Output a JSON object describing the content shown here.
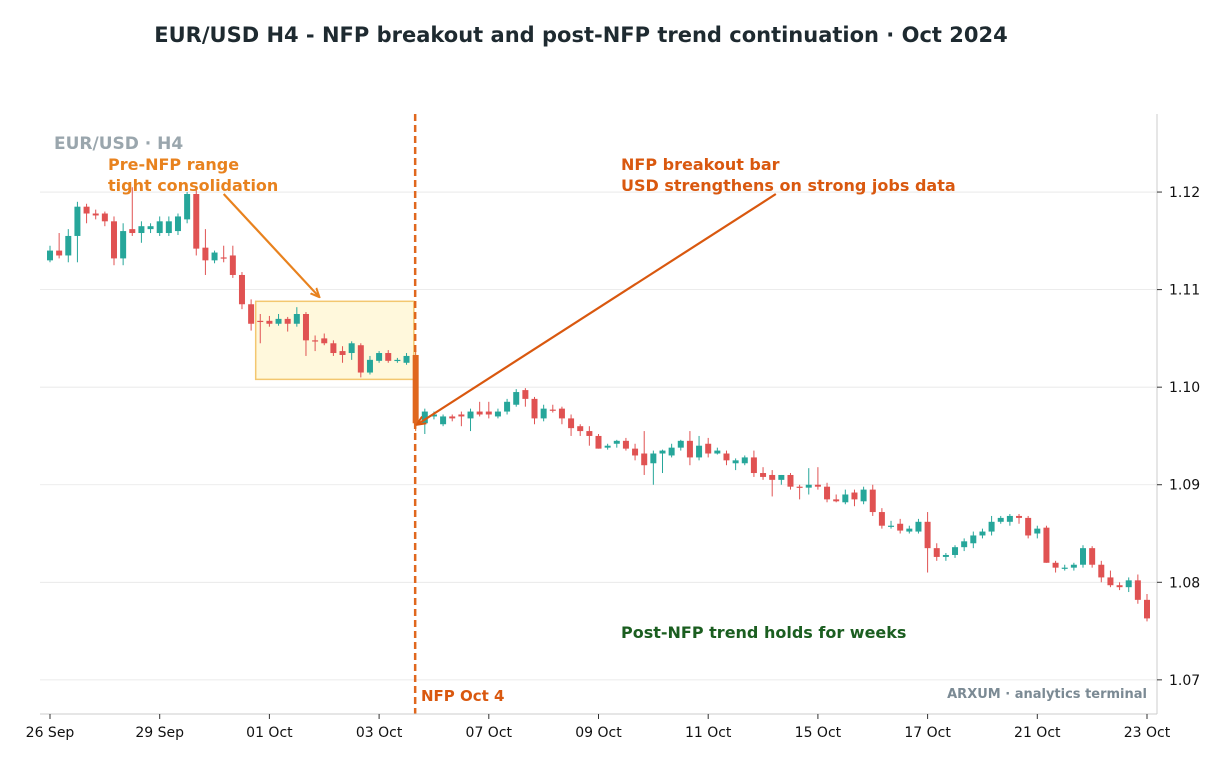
{
  "chart_data": {
    "type": "candlestick",
    "title": "EUR/USD H4 - NFP breakout and post-NFP trend continuation  ·  Oct 2024",
    "watermark": "EUR/USD · H4",
    "footer": "ARXUM · analytics terminal",
    "ylim": [
      1.0665,
      1.128
    ],
    "xlim": [
      -0.3,
      24.2
    ],
    "y_ticks": [
      1.07,
      1.08,
      1.09,
      1.1,
      1.11,
      1.12
    ],
    "y_tick_labels": [
      "1.07",
      "1.08",
      "1.09",
      "1.10",
      "1.11",
      "1.12"
    ],
    "x_ticks": [
      0,
      2.4,
      4.8,
      7.2,
      9.6,
      12,
      14.4,
      16.8,
      19.2,
      21.6,
      24
    ],
    "x_tick_labels": [
      "26 Sep",
      "29 Sep",
      "01 Oct",
      "03 Oct",
      "07 Oct",
      "09 Oct",
      "11 Oct",
      "15 Oct",
      "17 Oct",
      "21 Oct",
      "23 Oct"
    ],
    "grid": "horizontal",
    "colors": {
      "up": "#26a69a",
      "down": "#e05252",
      "nfp": "#e0671e",
      "range_fill": "#fff8dc",
      "range_edge": "#f3c770",
      "grid": "#e6e6e6"
    },
    "candles": [
      [
        1.113,
        1.1145,
        1.1128,
        1.114
      ],
      [
        1.114,
        1.1158,
        1.1132,
        1.1135
      ],
      [
        1.1135,
        1.1162,
        1.1128,
        1.1155
      ],
      [
        1.1155,
        1.119,
        1.1128,
        1.1185
      ],
      [
        1.1185,
        1.1188,
        1.1168,
        1.1178
      ],
      [
        1.1178,
        1.1182,
        1.1172,
        1.1176
      ],
      [
        1.1178,
        1.118,
        1.1165,
        1.117
      ],
      [
        1.117,
        1.1175,
        1.1125,
        1.1132
      ],
      [
        1.1132,
        1.1168,
        1.1125,
        1.116
      ],
      [
        1.1162,
        1.1205,
        1.1155,
        1.1158
      ],
      [
        1.1158,
        1.117,
        1.1148,
        1.1165
      ],
      [
        1.1162,
        1.1168,
        1.1158,
        1.1165
      ],
      [
        1.1158,
        1.1175,
        1.1155,
        1.117
      ],
      [
        1.1158,
        1.1175,
        1.1155,
        1.117
      ],
      [
        1.116,
        1.1178,
        1.1156,
        1.1175
      ],
      [
        1.1172,
        1.12,
        1.1168,
        1.1198
      ],
      [
        1.1198,
        1.1202,
        1.1135,
        1.1142
      ],
      [
        1.1143,
        1.1162,
        1.1115,
        1.113
      ],
      [
        1.113,
        1.114,
        1.1127,
        1.1138
      ],
      [
        1.1133,
        1.1145,
        1.1128,
        1.1132
      ],
      [
        1.1135,
        1.1145,
        1.1112,
        1.1115
      ],
      [
        1.1115,
        1.1118,
        1.108,
        1.1085
      ],
      [
        1.1085,
        1.109,
        1.1058,
        1.1065
      ],
      [
        1.1068,
        1.1075,
        1.1045,
        1.1067
      ],
      [
        1.1068,
        1.1073,
        1.1062,
        1.1065
      ],
      [
        1.1065,
        1.1075,
        1.1063,
        1.107
      ],
      [
        1.107,
        1.1072,
        1.1057,
        1.1065
      ],
      [
        1.1065,
        1.1082,
        1.1062,
        1.1075
      ],
      [
        1.1075,
        1.1077,
        1.1032,
        1.1048
      ],
      [
        1.1048,
        1.1053,
        1.1037,
        1.1047
      ],
      [
        1.105,
        1.1055,
        1.1043,
        1.1045
      ],
      [
        1.1045,
        1.1048,
        1.1032,
        1.1035
      ],
      [
        1.1037,
        1.1042,
        1.1025,
        1.1033
      ],
      [
        1.1035,
        1.1047,
        1.1028,
        1.1045
      ],
      [
        1.1043,
        1.1045,
        1.101,
        1.1015
      ],
      [
        1.1015,
        1.1032,
        1.1013,
        1.1028
      ],
      [
        1.1027,
        1.1037,
        1.1025,
        1.1035
      ],
      [
        1.1035,
        1.1038,
        1.1025,
        1.1027
      ],
      [
        1.1027,
        1.103,
        1.1025,
        1.1028
      ],
      [
        1.1025,
        1.1035,
        1.1023,
        1.1032
      ],
      [
        1.1033,
        1.1037,
        1.0955,
        1.0963
      ],
      [
        1.0963,
        1.0978,
        1.0952,
        1.0975
      ],
      [
        1.097,
        1.0975,
        1.0967,
        1.0972
      ],
      [
        1.0962,
        1.0972,
        1.096,
        1.097
      ],
      [
        1.097,
        1.0972,
        1.0965,
        1.0968
      ],
      [
        1.0972,
        1.0975,
        1.096,
        1.097
      ],
      [
        1.0968,
        1.0978,
        1.0955,
        1.0975
      ],
      [
        1.0975,
        1.0985,
        1.097,
        1.0972
      ],
      [
        1.0975,
        1.0985,
        1.0968,
        1.0972
      ],
      [
        1.097,
        1.0978,
        1.0968,
        1.0975
      ],
      [
        1.0975,
        1.0988,
        1.0972,
        1.0985
      ],
      [
        1.0982,
        1.0998,
        1.098,
        1.0995
      ],
      [
        1.0997,
        1.0999,
        1.098,
        1.0988
      ],
      [
        1.0988,
        1.099,
        1.0962,
        1.0968
      ],
      [
        1.0968,
        1.0982,
        1.0965,
        1.0978
      ],
      [
        1.0977,
        1.0982,
        1.0974,
        1.0976
      ],
      [
        1.0978,
        1.098,
        1.0962,
        1.0968
      ],
      [
        1.0968,
        1.0972,
        1.095,
        1.0958
      ],
      [
        1.096,
        1.0962,
        1.095,
        1.0955
      ],
      [
        1.0955,
        1.096,
        1.094,
        1.095
      ],
      [
        1.095,
        1.0952,
        1.0937,
        1.0937
      ],
      [
        1.0938,
        1.0942,
        1.0936,
        1.094
      ],
      [
        1.0942,
        1.0946,
        1.0938,
        1.0945
      ],
      [
        1.0945,
        1.0948,
        1.0935,
        1.0937
      ],
      [
        1.0937,
        1.0942,
        1.0925,
        1.093
      ],
      [
        1.0932,
        1.0955,
        1.091,
        1.092
      ],
      [
        1.0922,
        1.0935,
        1.09,
        1.0932
      ],
      [
        1.0932,
        1.0936,
        1.0912,
        1.0935
      ],
      [
        1.093,
        1.0942,
        1.0928,
        1.0938
      ],
      [
        1.0938,
        1.0946,
        1.0935,
        1.0945
      ],
      [
        1.0945,
        1.0955,
        1.092,
        1.0928
      ],
      [
        1.0928,
        1.095,
        1.0925,
        1.094
      ],
      [
        1.0942,
        1.0948,
        1.0928,
        1.0932
      ],
      [
        1.0932,
        1.0938,
        1.0931,
        1.0935
      ],
      [
        1.0932,
        1.0935,
        1.092,
        1.0925
      ],
      [
        1.0922,
        1.0927,
        1.0915,
        1.0925
      ],
      [
        1.0922,
        1.093,
        1.092,
        1.0928
      ],
      [
        1.0928,
        1.0935,
        1.0908,
        1.0912
      ],
      [
        1.0912,
        1.0918,
        1.0905,
        1.0908
      ],
      [
        1.091,
        1.0915,
        1.0888,
        1.0905
      ],
      [
        1.0905,
        1.091,
        1.09,
        1.091
      ],
      [
        1.091,
        1.0912,
        1.0895,
        1.0898
      ],
      [
        1.0898,
        1.09,
        1.0885,
        1.0897
      ],
      [
        1.0897,
        1.0917,
        1.089,
        1.09
      ],
      [
        1.09,
        1.0918,
        1.0895,
        1.0898
      ],
      [
        1.0898,
        1.0902,
        1.0882,
        1.0885
      ],
      [
        1.0885,
        1.089,
        1.0882,
        1.0883
      ],
      [
        1.0882,
        1.0895,
        1.088,
        1.089
      ],
      [
        1.0892,
        1.0895,
        1.0878,
        1.0885
      ],
      [
        1.0883,
        1.0898,
        1.088,
        1.0895
      ],
      [
        1.0895,
        1.09,
        1.0868,
        1.0872
      ],
      [
        1.0872,
        1.0876,
        1.0855,
        1.0858
      ],
      [
        1.0858,
        1.0863,
        1.0855,
        1.0858
      ],
      [
        1.086,
        1.0865,
        1.085,
        1.0853
      ],
      [
        1.0852,
        1.0858,
        1.085,
        1.0855
      ],
      [
        1.0852,
        1.0865,
        1.085,
        1.0862
      ],
      [
        1.0862,
        1.0872,
        1.081,
        1.0835
      ],
      [
        1.0835,
        1.084,
        1.0822,
        1.0826
      ],
      [
        1.0826,
        1.083,
        1.0822,
        1.0828
      ],
      [
        1.0828,
        1.0838,
        1.0825,
        1.0836
      ],
      [
        1.0836,
        1.0845,
        1.0832,
        1.0842
      ],
      [
        1.084,
        1.0852,
        1.0835,
        1.0848
      ],
      [
        1.0848,
        1.0855,
        1.0845,
        1.0852
      ],
      [
        1.0852,
        1.0868,
        1.0848,
        1.0862
      ],
      [
        1.0862,
        1.0868,
        1.086,
        1.0866
      ],
      [
        1.0862,
        1.087,
        1.0858,
        1.0868
      ],
      [
        1.0868,
        1.087,
        1.086,
        1.0866
      ],
      [
        1.0866,
        1.0868,
        1.0845,
        1.0848
      ],
      [
        1.085,
        1.0858,
        1.0845,
        1.0855
      ],
      [
        1.0856,
        1.0858,
        1.082,
        1.082
      ],
      [
        1.082,
        1.0822,
        1.081,
        1.0815
      ],
      [
        1.0815,
        1.0818,
        1.0812,
        1.0815
      ],
      [
        1.0815,
        1.082,
        1.0812,
        1.0818
      ],
      [
        1.0818,
        1.0838,
        1.0815,
        1.0835
      ],
      [
        1.0835,
        1.0837,
        1.0815,
        1.0818
      ],
      [
        1.0818,
        1.0822,
        1.08,
        1.0805
      ],
      [
        1.0805,
        1.0812,
        1.0795,
        1.0797
      ],
      [
        1.0797,
        1.08,
        1.0792,
        1.0795
      ],
      [
        1.0795,
        1.0805,
        1.079,
        1.0802
      ],
      [
        1.0802,
        1.0808,
        1.0778,
        1.0782
      ],
      [
        1.0782,
        1.0788,
        1.076,
        1.0763
      ]
    ],
    "nfp_index": 40,
    "nfp_label": "NFP Oct 4",
    "range_box": {
      "x_start": 22.5,
      "x_end": 39.8,
      "y_low": 1.1008,
      "y_high": 1.1088
    },
    "annotations": {
      "pre_nfp": {
        "text1": "Pre-NFP range",
        "text2": "tight consolidation",
        "color": "#e8821e",
        "arrow_from": [
          19.0,
          1.1198
        ],
        "arrow_to": [
          29.4,
          1.1093
        ]
      },
      "breakout": {
        "text1": "NFP breakout bar",
        "text2": "USD strengthens on strong jobs data",
        "color": "#d9580f",
        "arrow_from": [
          79.4,
          1.1198
        ],
        "arrow_to": [
          40.2,
          1.0962
        ]
      },
      "trend": {
        "text": "Post-NFP trend holds for weeks",
        "color": "#1b5e20"
      }
    }
  }
}
